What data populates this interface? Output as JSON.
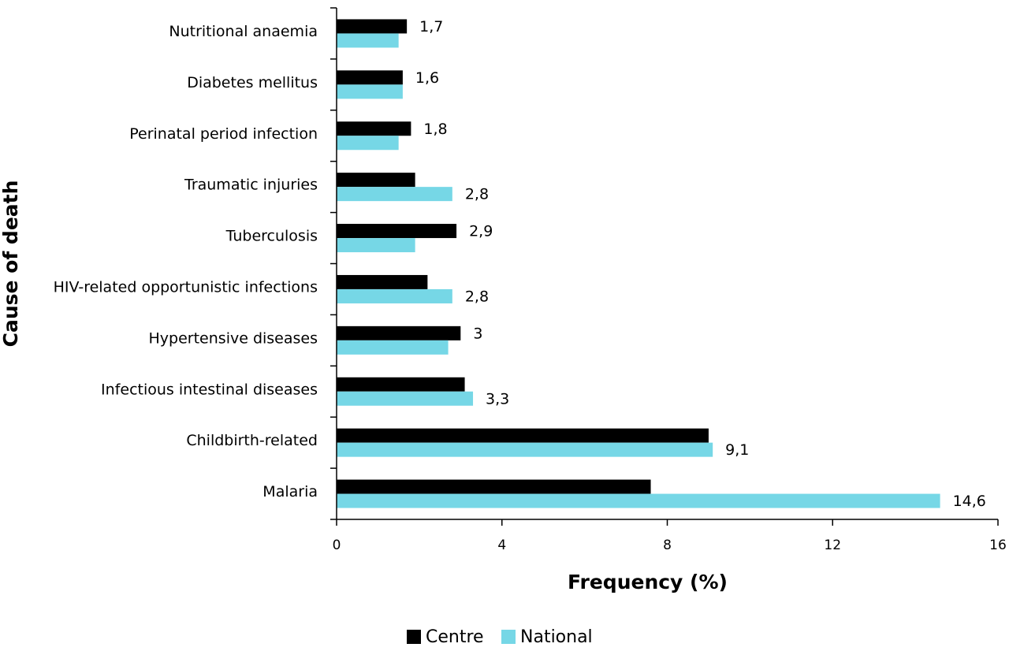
{
  "chart_data": {
    "type": "bar",
    "orientation": "horizontal",
    "categories": [
      "Nutritional anaemia",
      "Diabetes mellitus",
      "Perinatal period infection",
      "Traumatic injuries",
      "Tuberculosis",
      "HIV-related opportunistic infections",
      "Hypertensive diseases",
      "Infectious intestinal diseases",
      "Childbirth-related",
      "Malaria"
    ],
    "series": [
      {
        "name": "Centre",
        "color": "#000000",
        "values": [
          1.7,
          1.6,
          1.8,
          1.9,
          2.9,
          2.2,
          3.0,
          3.1,
          9.0,
          7.6
        ]
      },
      {
        "name": "National",
        "color": "#76d7e6",
        "values": [
          1.5,
          1.6,
          1.5,
          2.8,
          1.9,
          2.8,
          2.7,
          3.3,
          9.1,
          14.6
        ]
      }
    ],
    "data_labels": [
      "1,7",
      "1,6",
      "1,8",
      "2,8",
      "2,9",
      "2,8",
      "3",
      "3,3",
      "9,1",
      "14,6"
    ],
    "data_label_series": [
      0,
      0,
      0,
      1,
      0,
      1,
      0,
      1,
      1,
      1
    ],
    "xlabel": "Frequency (%)",
    "ylabel": "Cause of death",
    "xlim": [
      0,
      16
    ],
    "xticks": [
      "0",
      "4",
      "8",
      "12",
      "16"
    ],
    "grid": false,
    "legend_position": "bottom-center"
  }
}
